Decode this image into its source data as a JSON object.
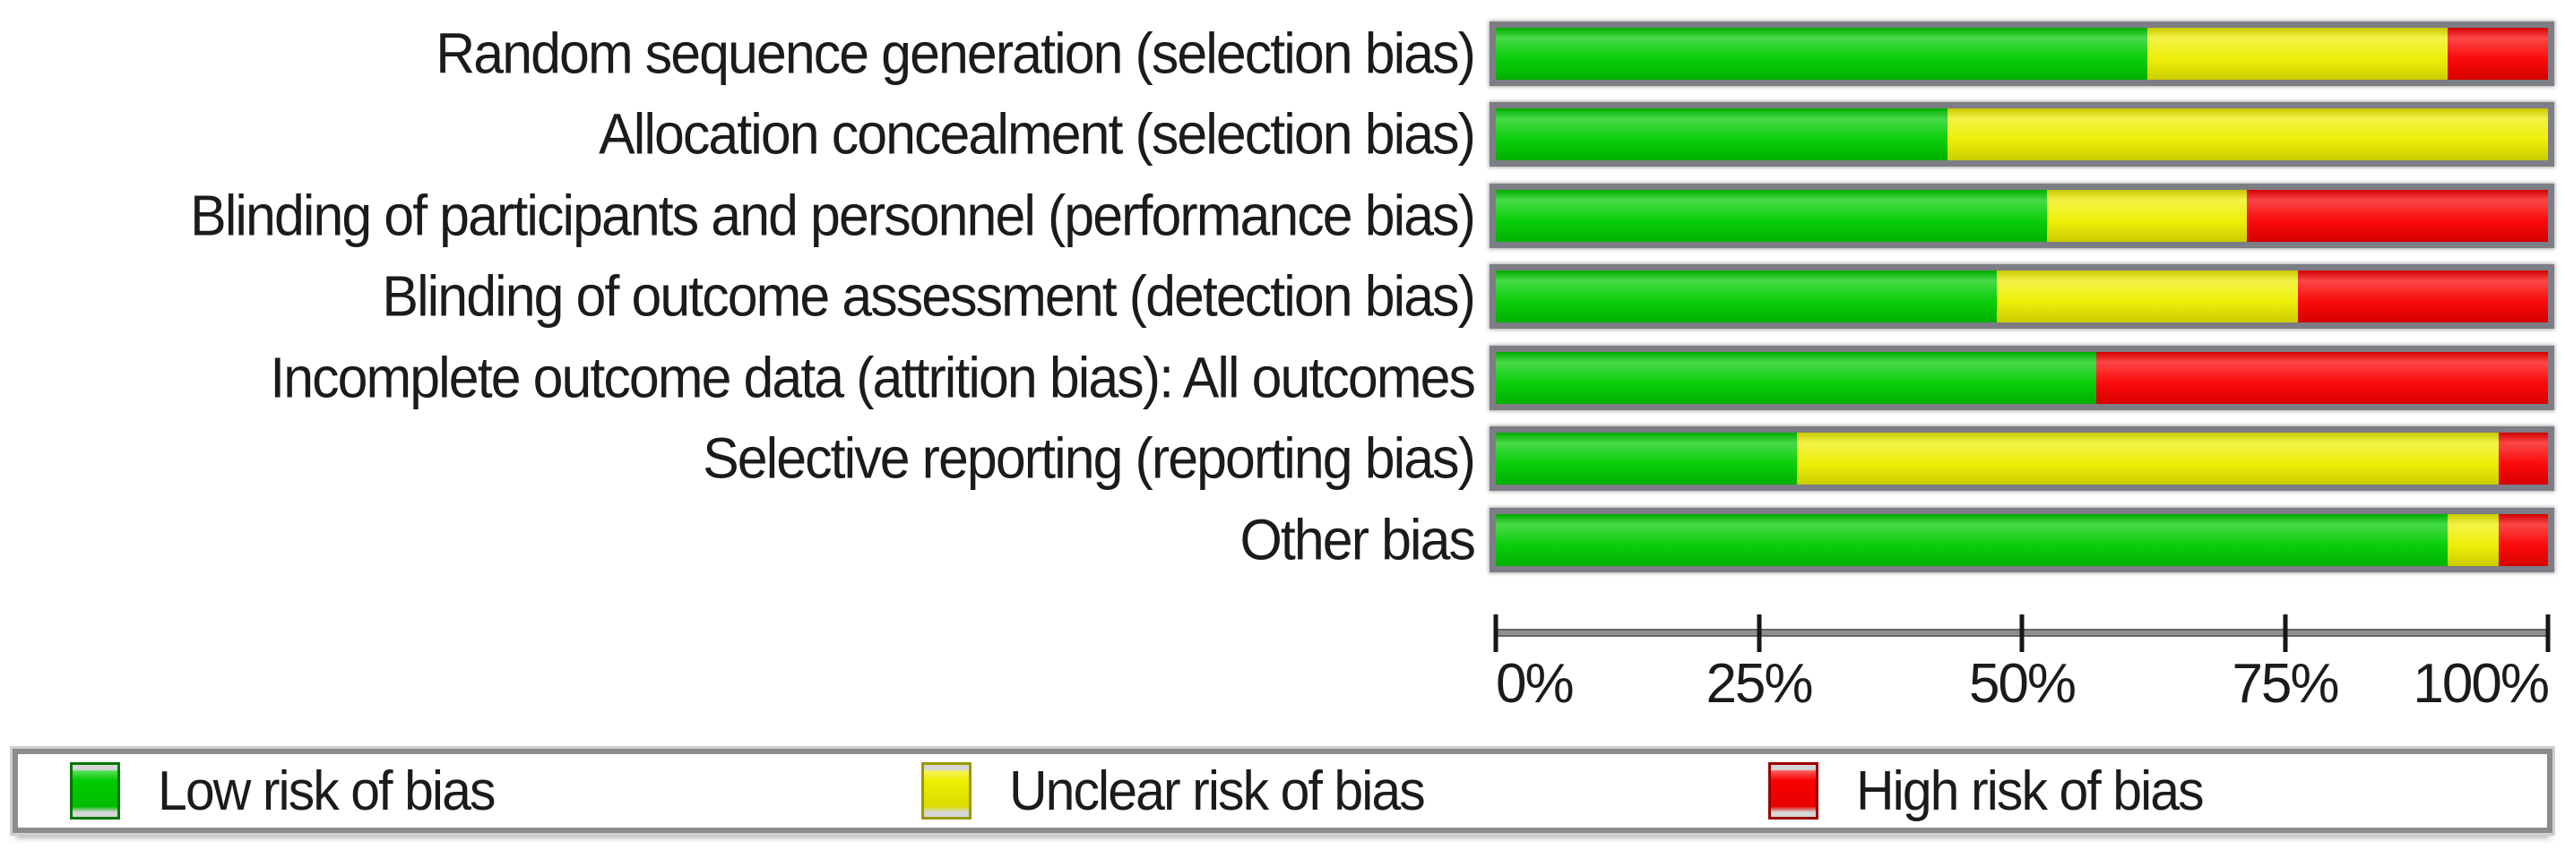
{
  "chart_data": {
    "type": "bar",
    "orientation": "horizontal_stacked",
    "stacked": true,
    "unit": "percent_of_studies",
    "title": "",
    "xlabel": "",
    "ylabel": "",
    "xlim": [
      0,
      100
    ],
    "grid": false,
    "legend_position": "bottom",
    "categories": [
      "Random sequence generation (selection bias)",
      "Allocation concealment (selection bias)",
      "Blinding of participants and personnel (performance bias)",
      "Blinding of outcome assessment (detection bias)",
      "Incomplete outcome data (attrition bias): All outcomes",
      "Selective reporting (reporting bias)",
      "Other bias"
    ],
    "series": [
      {
        "name": "Low risk of bias",
        "color": "#00cc00",
        "values": [
          61.9,
          42.9,
          52.4,
          47.6,
          57.1,
          28.6,
          90.5
        ]
      },
      {
        "name": "Unclear risk of bias",
        "color": "#eeee00",
        "values": [
          28.6,
          57.1,
          19.0,
          28.6,
          0.0,
          66.7,
          4.8
        ]
      },
      {
        "name": "High risk of bias",
        "color": "#fa0000",
        "values": [
          9.5,
          0.0,
          28.6,
          23.8,
          42.9,
          4.7,
          4.7
        ]
      }
    ],
    "x_ticks": [
      {
        "label": "0%",
        "value": 0
      },
      {
        "label": "25%",
        "value": 25
      },
      {
        "label": "50%",
        "value": 50
      },
      {
        "label": "75%",
        "value": 75
      },
      {
        "label": "100%",
        "value": 100
      }
    ]
  },
  "legend": {
    "swatch_border_colors": [
      "#007700",
      "#999900",
      "#990000"
    ]
  }
}
